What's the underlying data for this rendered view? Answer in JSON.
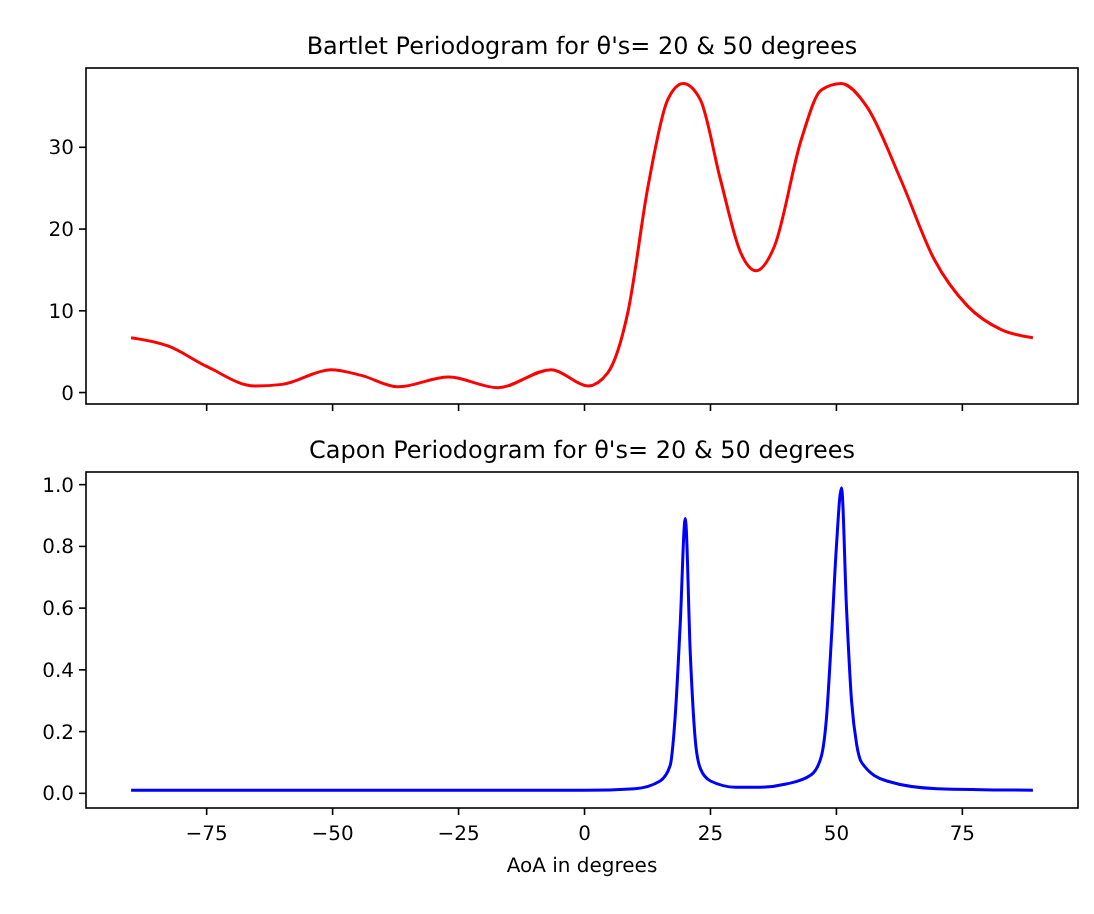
{
  "chart_data": [
    {
      "type": "line",
      "title": "Bartlet Periodogram for θ's= 20 & 50 degrees",
      "tick_labels": "y",
      "xlim": [
        -98.95,
        97.95
      ],
      "xticks": [
        {
          "value": -75,
          "label": null
        },
        {
          "value": -50,
          "label": null
        },
        {
          "value": -25,
          "label": null
        },
        {
          "value": 0,
          "label": null
        },
        {
          "value": 25,
          "label": null
        },
        {
          "value": 50,
          "label": null
        },
        {
          "value": 75,
          "label": null
        }
      ],
      "ylim": [
        -1.4,
        39.7
      ],
      "yticks": [
        0,
        10,
        20,
        30
      ],
      "series": [
        {
          "color": "#ff0000",
          "x": [
            -90,
            -82.7,
            -74.7,
            -65.5,
            -60,
            -50.3,
            -44.3,
            -37,
            -27,
            -17.2,
            -6.6,
            0.7,
            4.6,
            8.6,
            12.6,
            16.5,
            19.6,
            23,
            27,
            31,
            34,
            37.7,
            43,
            47,
            50.9,
            56,
            62.8,
            69.4,
            76,
            82.7,
            89
          ],
          "values": [
            6.7,
            5.7,
            3.1,
            0.8,
            1.0,
            2.8,
            2.1,
            0.7,
            1.9,
            0.6,
            2.8,
            0.8,
            2.4,
            9.8,
            25.2,
            35.8,
            37.8,
            35.8,
            26,
            17.1,
            14.9,
            17.9,
            30.9,
            37,
            37.8,
            35,
            26,
            16.3,
            10.6,
            7.7,
            6.7
          ]
        }
      ]
    },
    {
      "type": "line",
      "title": "Capon Periodogram for θ's= 20 & 50 degrees",
      "xlabel": "AoA in degrees",
      "xlim": [
        -98.95,
        97.95
      ],
      "xticks": [
        -75,
        -50,
        -25,
        0,
        25,
        50,
        75
      ],
      "ylim": [
        -0.0475,
        1.041
      ],
      "yticks": [
        {
          "value": 0,
          "label": "0.0"
        },
        0.2,
        0.4,
        0.6,
        0.8,
        {
          "value": 1,
          "label": "1.0"
        }
      ],
      "series": [
        {
          "color": "#0000ff",
          "x": [
            -90,
            0,
            10,
            15,
            17,
            18,
            19,
            20,
            21,
            22,
            23,
            25,
            30,
            35,
            40,
            45,
            47,
            48,
            49,
            50,
            51,
            52,
            53,
            54,
            55,
            60,
            70,
            89
          ],
          "values": [
            0.01,
            0.01,
            0.015,
            0.04,
            0.09,
            0.25,
            0.55,
            0.89,
            0.45,
            0.17,
            0.08,
            0.04,
            0.02,
            0.02,
            0.03,
            0.06,
            0.12,
            0.24,
            0.5,
            0.8,
            0.99,
            0.6,
            0.3,
            0.16,
            0.1,
            0.04,
            0.015,
            0.01
          ]
        }
      ]
    }
  ]
}
